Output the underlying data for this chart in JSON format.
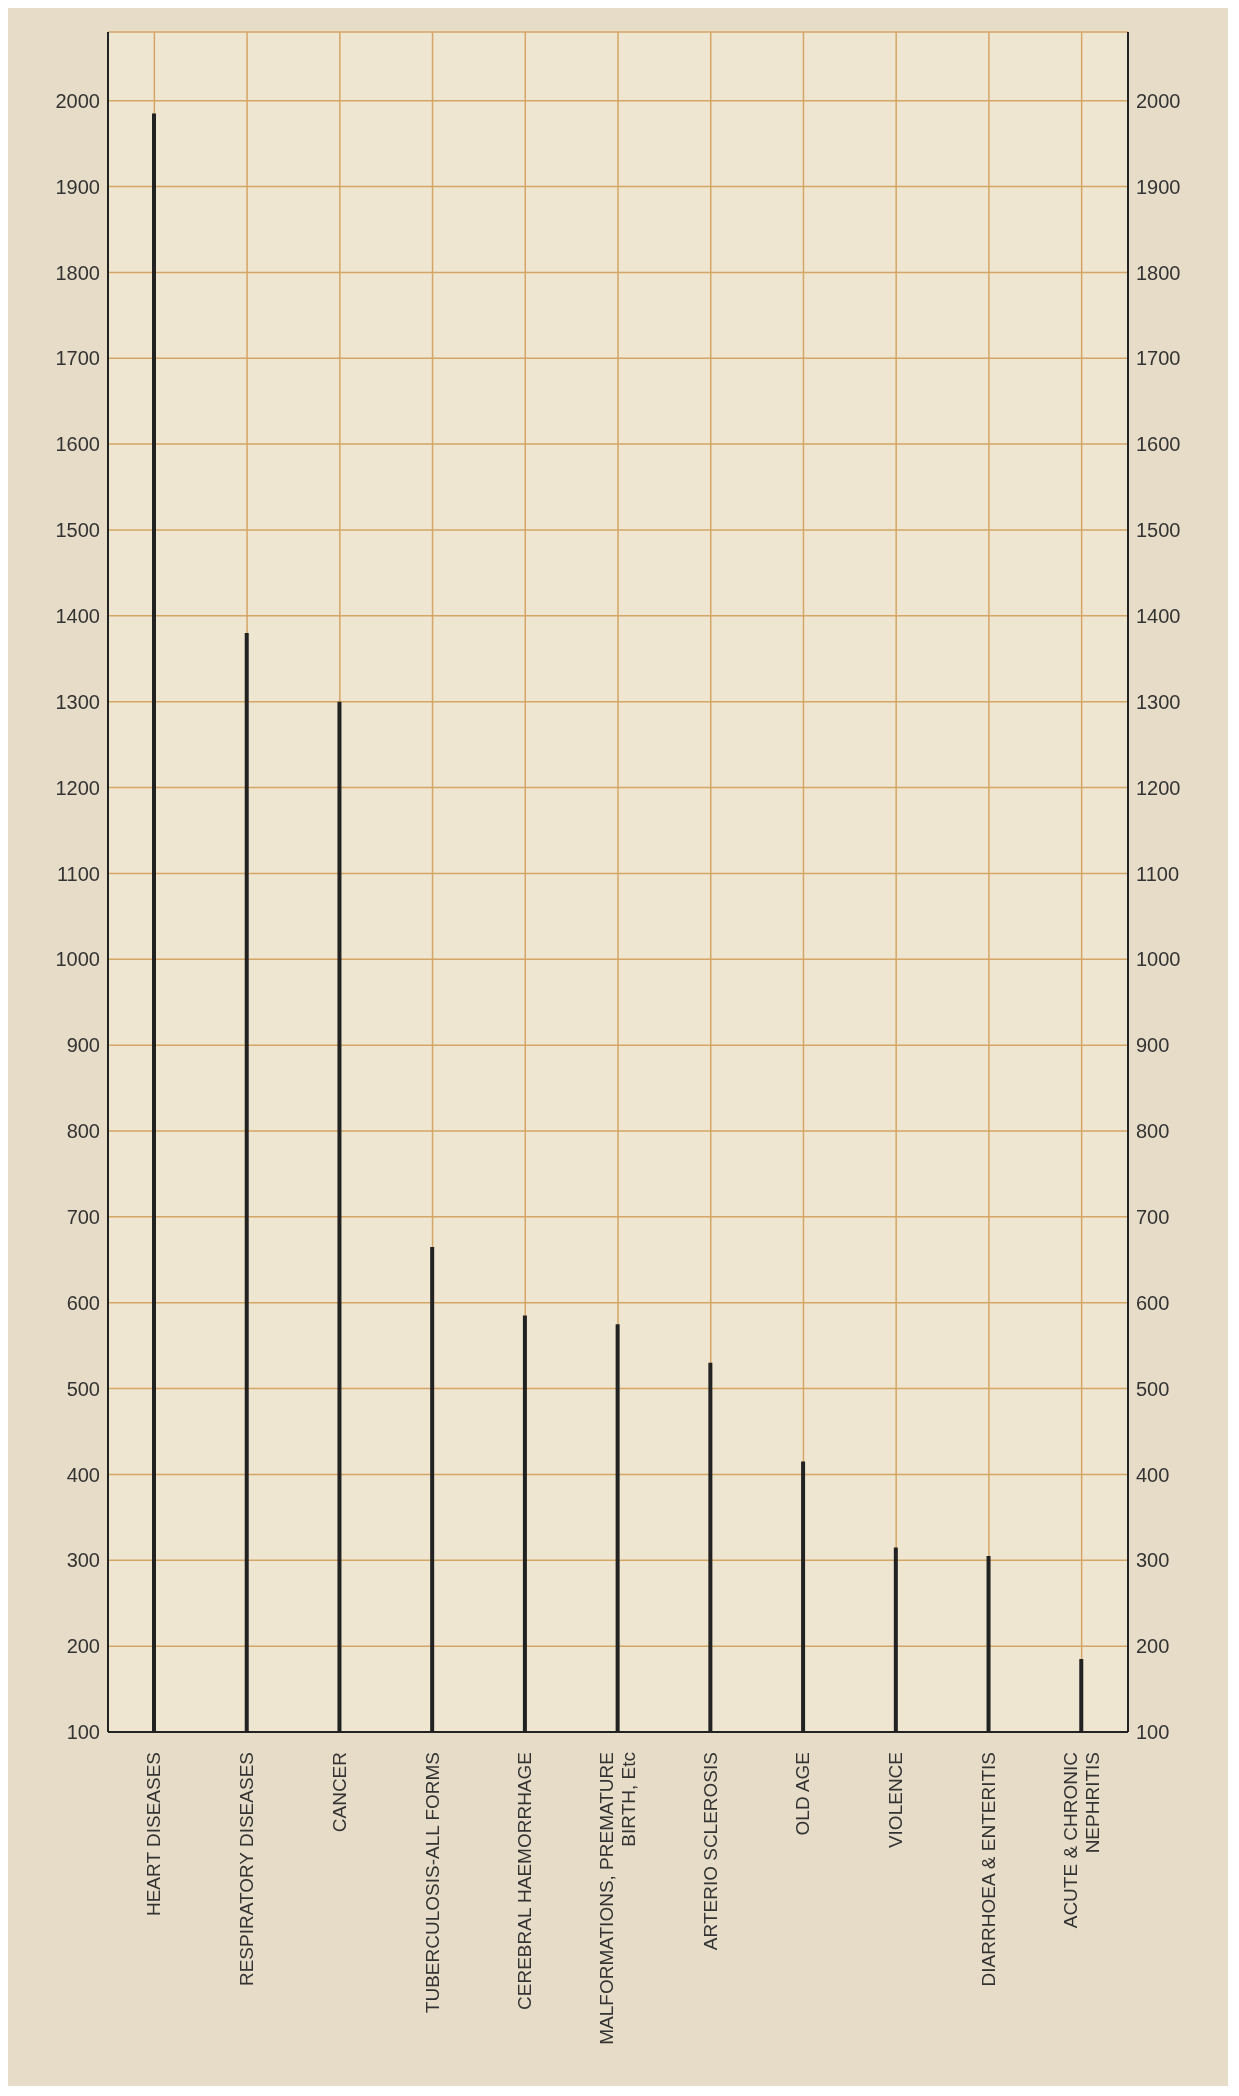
{
  "chart_data": {
    "type": "bar",
    "categories": [
      "HEART DISEASES",
      "RESPIRATORY DISEASES",
      "CANCER",
      "TUBERCULOSIS-ALL FORMS",
      "CEREBRAL HAEMORRHAGE",
      "MALFORMATIONS, PREMATURE BIRTH, Etc",
      "ARTERIO SCLEROSIS",
      "OLD AGE",
      "VIOLENCE",
      "DIARRHOEA & ENTERITIS",
      "ACUTE & CHRONIC NEPHRITIS"
    ],
    "values": [
      1985,
      1380,
      1300,
      665,
      585,
      575,
      530,
      415,
      315,
      305,
      185
    ],
    "color": "#222222",
    "ylim": [
      100,
      2080
    ],
    "yticks": [
      100,
      200,
      300,
      400,
      500,
      600,
      700,
      800,
      900,
      1000,
      1100,
      1200,
      1300,
      1400,
      1500,
      1600,
      1700,
      1800,
      1900,
      2000
    ],
    "y2lim": [
      100,
      2080
    ],
    "y2ticks": [
      100,
      200,
      300,
      400,
      500,
      600,
      700,
      800,
      900,
      1000,
      1100,
      1200,
      1300,
      1400,
      1500,
      1600,
      1700,
      1800,
      1900,
      2000
    ],
    "grid": true
  }
}
